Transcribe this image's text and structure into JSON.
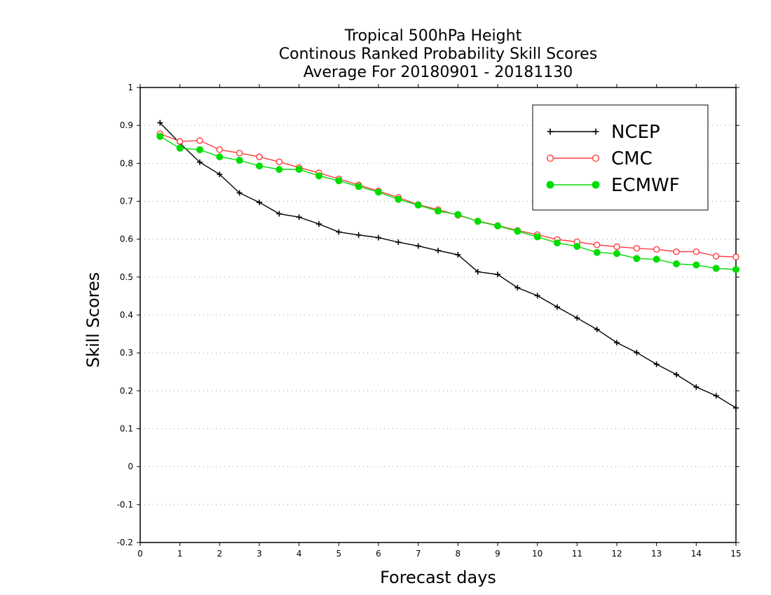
{
  "chart_data": {
    "type": "line",
    "title_lines": [
      "Tropical 500hPa Height",
      "Continous Ranked Probability Skill Scores",
      "Average For 20180901 - 20181130"
    ],
    "xlabel": "Forecast days",
    "ylabel": "Skill Scores",
    "xlim": [
      0,
      15
    ],
    "ylim": [
      -0.2,
      1
    ],
    "x_ticks": [
      0,
      1,
      2,
      3,
      4,
      5,
      6,
      7,
      8,
      9,
      10,
      11,
      12,
      13,
      14,
      15
    ],
    "x_tick_labels": [
      "0",
      "1",
      "2",
      "3",
      "4",
      "5",
      "6",
      "7",
      "8",
      "9",
      "10",
      "11",
      "12",
      "13",
      "14",
      "15"
    ],
    "y_ticks": [
      -0.2,
      -0.1,
      0,
      0.1,
      0.2,
      0.3,
      0.4,
      0.5,
      0.6,
      0.7,
      0.8,
      0.9,
      1
    ],
    "y_tick_labels": [
      "-0.2",
      "-0.1",
      "0",
      "0.1",
      "0.2",
      "0.3",
      "0.4",
      "0.5",
      "0.6",
      "0.7",
      "0.8",
      "0.9",
      "1"
    ],
    "grid": true,
    "legend_position": "top-right",
    "x": [
      0.5,
      1.0,
      1.5,
      2.0,
      2.5,
      3.0,
      3.5,
      4.0,
      4.5,
      5.0,
      5.5,
      6.0,
      6.5,
      7.0,
      7.5,
      8.0,
      8.5,
      9.0,
      9.5,
      10.0,
      10.5,
      11.0,
      11.5,
      12.0,
      12.5,
      13.0,
      13.5,
      14.0,
      14.5,
      15.0
    ],
    "series": [
      {
        "name": "NCEP",
        "color": "#000000",
        "marker": "plus",
        "values": [
          0.907,
          0.853,
          0.803,
          0.771,
          0.722,
          0.697,
          0.667,
          0.658,
          0.64,
          0.619,
          0.611,
          0.604,
          0.592,
          0.582,
          0.57,
          0.559,
          0.514,
          0.507,
          0.472,
          0.451,
          0.421,
          0.392,
          0.362,
          0.327,
          0.301,
          0.27,
          0.243,
          0.21,
          0.187,
          0.155
        ]
      },
      {
        "name": "CMC",
        "color": "#ff3c3c",
        "marker": "open-circle",
        "values": [
          0.878,
          0.858,
          0.86,
          0.836,
          0.827,
          0.817,
          0.804,
          0.789,
          0.775,
          0.759,
          0.743,
          0.727,
          0.71,
          0.691,
          0.678,
          0.663,
          0.648,
          0.636,
          0.623,
          0.612,
          0.599,
          0.593,
          0.585,
          0.58,
          0.576,
          0.573,
          0.567,
          0.567,
          0.555,
          0.553
        ]
      },
      {
        "name": "ECMWF",
        "color": "#00dd00",
        "marker": "filled-circle",
        "values": [
          0.871,
          0.84,
          0.836,
          0.817,
          0.808,
          0.793,
          0.784,
          0.784,
          0.767,
          0.754,
          0.739,
          0.724,
          0.705,
          0.69,
          0.674,
          0.665,
          0.647,
          0.635,
          0.621,
          0.606,
          0.59,
          0.581,
          0.565,
          0.562,
          0.549,
          0.547,
          0.535,
          0.532,
          0.523,
          0.52
        ]
      }
    ]
  }
}
